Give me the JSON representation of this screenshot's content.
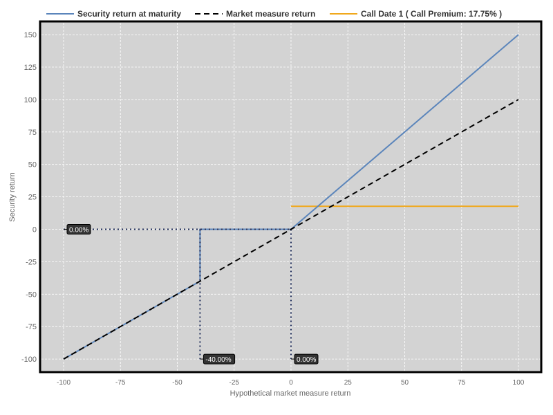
{
  "chart_data": {
    "type": "line",
    "xlabel": "Hypothetical market measure return",
    "ylabel": "Security return",
    "xlim": [
      -110,
      110
    ],
    "ylim": [
      -110,
      160
    ],
    "xticks": [
      -100,
      -75,
      -50,
      -25,
      0,
      25,
      50,
      75,
      100
    ],
    "yticks": [
      -100,
      -75,
      -50,
      -25,
      0,
      25,
      50,
      75,
      100,
      125,
      150
    ],
    "grid": true,
    "legend_position": "top",
    "background": "#d3d3d3",
    "series": [
      {
        "name": "Security return at maturity",
        "color": "#5b85bb",
        "style": "solid",
        "points": [
          [
            -100,
            -100
          ],
          [
            -40,
            -40
          ],
          [
            -40,
            0
          ],
          [
            0,
            0
          ],
          [
            100,
            150
          ]
        ]
      },
      {
        "name": "Market measure return",
        "color": "#000000",
        "style": "dashed",
        "points": [
          [
            -100,
            -100
          ],
          [
            100,
            100
          ]
        ]
      },
      {
        "name": "Call Date 1 ( Call Premium: 17.75% )",
        "color": "#f0a81c",
        "style": "solid",
        "points": [
          [
            0,
            17.75
          ],
          [
            100,
            17.75
          ]
        ]
      }
    ],
    "reference_lines": [
      {
        "points": [
          [
            -100,
            0
          ],
          [
            0,
            0
          ]
        ],
        "color": "#1f2d5a",
        "style": "dotted"
      },
      {
        "points": [
          [
            -40,
            0
          ],
          [
            -40,
            -100
          ]
        ],
        "color": "#1f2d5a",
        "style": "dotted"
      },
      {
        "points": [
          [
            0,
            0
          ],
          [
            0,
            -100
          ]
        ],
        "color": "#1f2d5a",
        "style": "dotted"
      }
    ],
    "annotations": [
      {
        "text": "0.00%",
        "x": -100,
        "y": 0
      },
      {
        "text": "-40.00%",
        "x": -40,
        "y": -100
      },
      {
        "text": "0.00%",
        "x": 0,
        "y": -100
      }
    ]
  }
}
